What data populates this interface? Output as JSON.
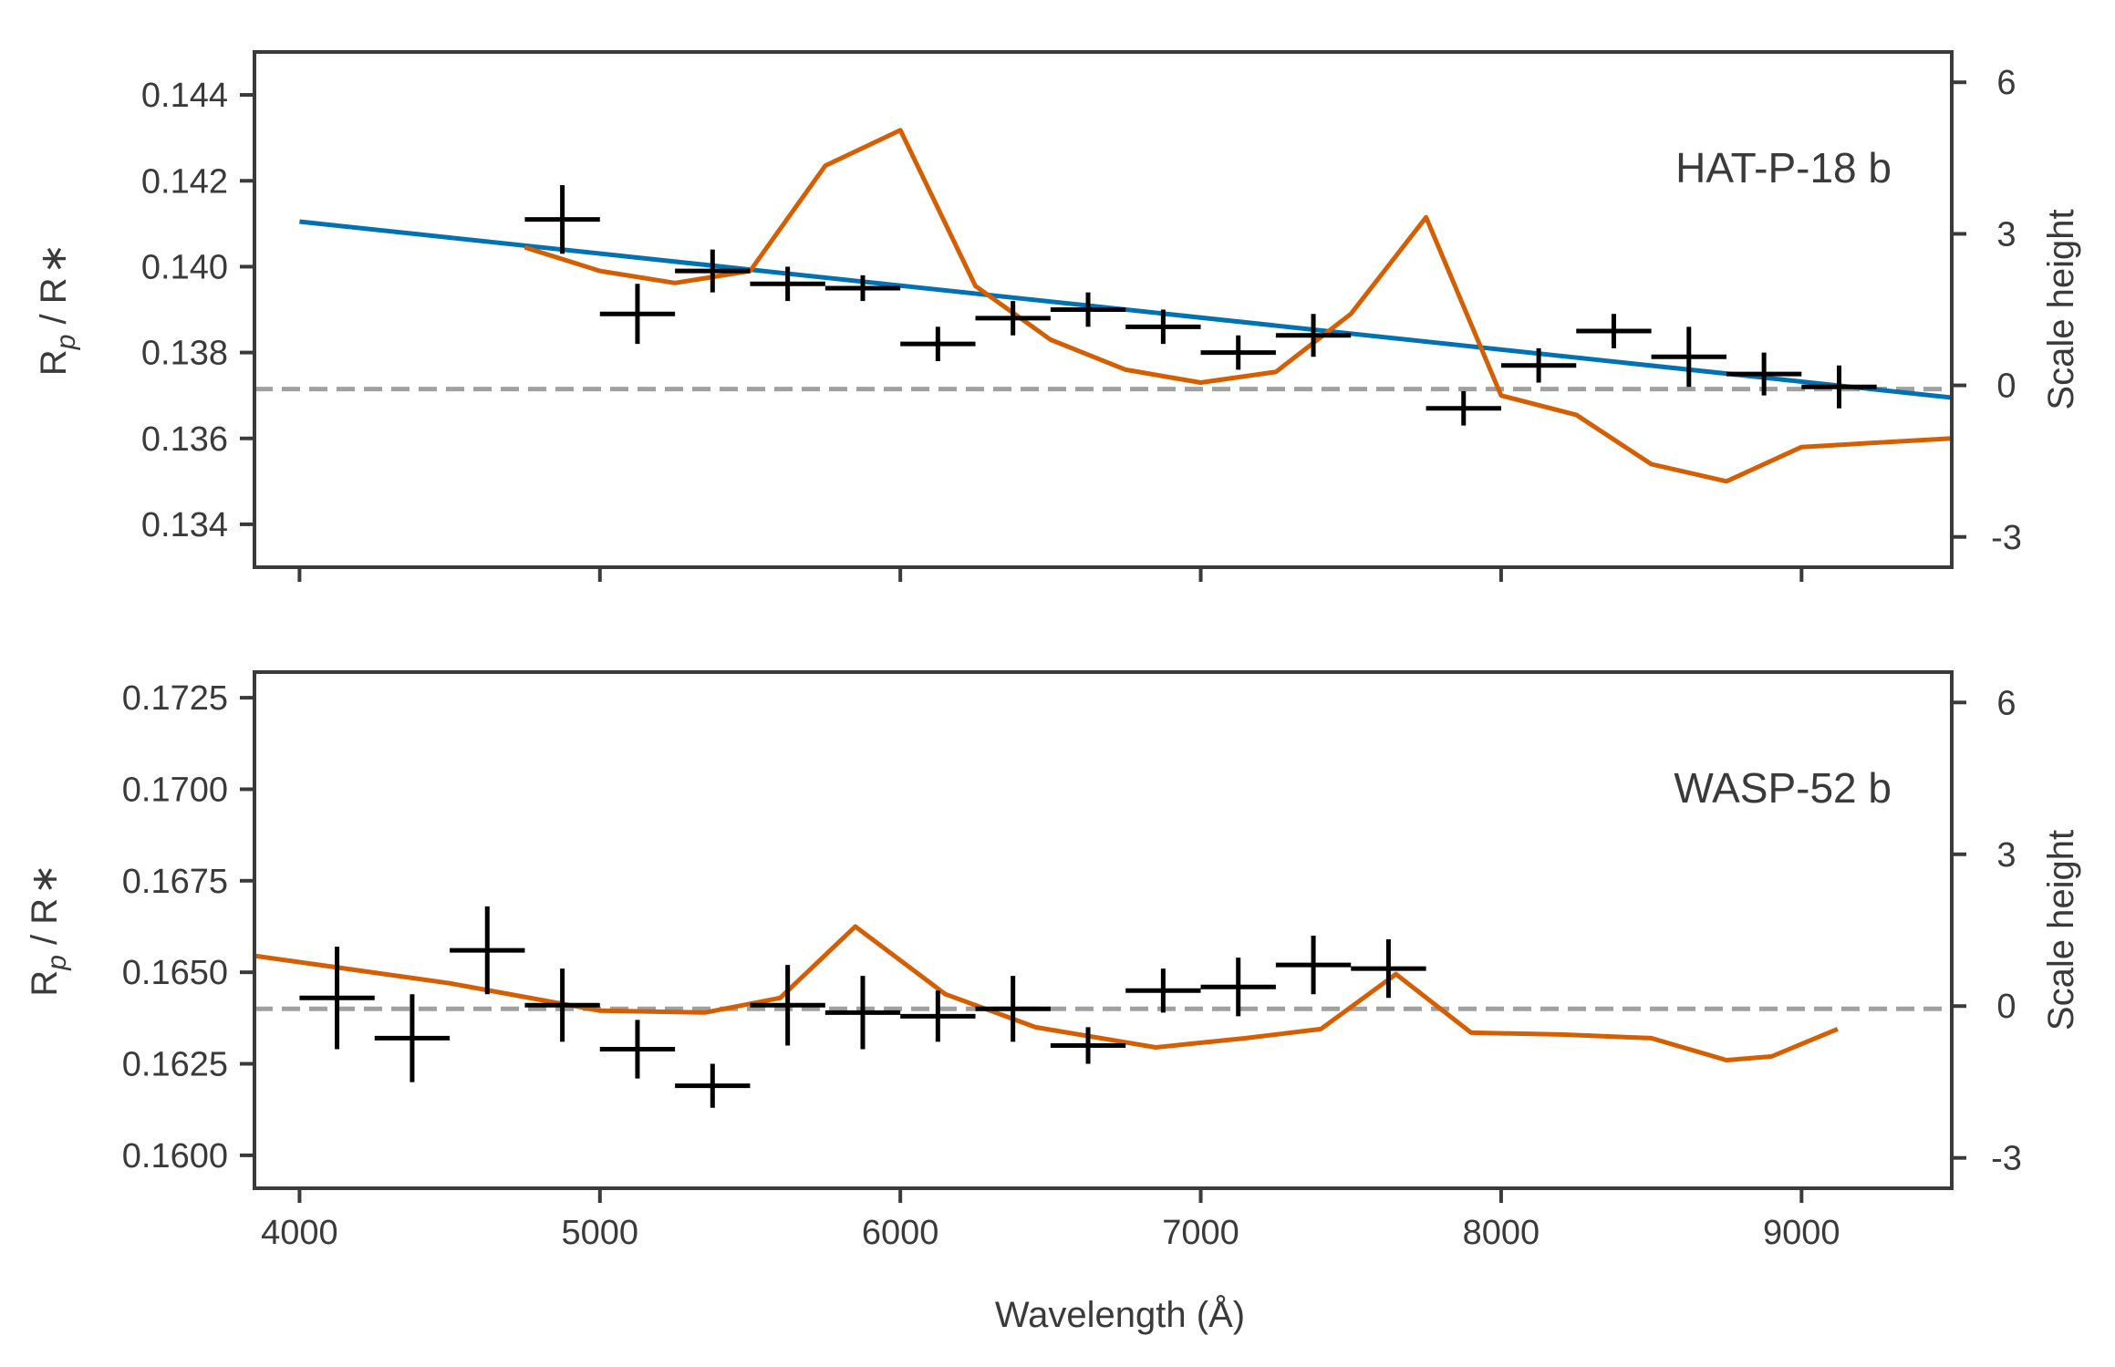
{
  "figure": {
    "xlabel": "Wavelength (Å)",
    "xticks": [
      4000,
      5000,
      6000,
      7000,
      8000,
      9000
    ],
    "xlim": [
      3850,
      9500
    ],
    "colors": {
      "model": "#d55e00",
      "fit": "#0072b2",
      "data": "#000000",
      "reference": "#a0a0a0",
      "axes": "#3a3a3a"
    }
  },
  "chart_data": [
    {
      "type": "line",
      "title": "HAT-P-18 b",
      "ylabel_main": "R",
      "ylabel_sub": "p",
      "ylabel_rest": " / R",
      "ylabel_star": "∗",
      "ylabel_right": "Scale height",
      "ylim": [
        0.133,
        0.145
      ],
      "yticks": [
        "0.134",
        "0.136",
        "0.138",
        "0.140",
        "0.142",
        "0.144"
      ],
      "ytick_values": [
        0.134,
        0.136,
        0.138,
        0.14,
        0.142,
        0.144
      ],
      "y2lim": [
        -3.6,
        6.6
      ],
      "y2ticks": [
        "-3",
        "0",
        "3",
        "6"
      ],
      "y2tick_values": [
        -3,
        0,
        3,
        6
      ],
      "reference_level": 0.13715,
      "series": [
        {
          "kind": "errorbar",
          "x": [
            4875,
            5125,
            5375,
            5625,
            5875,
            6125,
            6375,
            6625,
            6875,
            7125,
            7375,
            7875,
            8125,
            8375,
            8625,
            8875,
            9125
          ],
          "y": [
            0.1411,
            0.1389,
            0.1399,
            0.1396,
            0.1395,
            0.1382,
            0.1388,
            0.139,
            0.1386,
            0.138,
            0.1384,
            0.1367,
            0.1377,
            0.1385,
            0.1379,
            0.1375,
            0.1372
          ],
          "xerr": [
            125,
            125,
            125,
            125,
            125,
            125,
            125,
            125,
            125,
            125,
            125,
            125,
            125,
            125,
            125,
            125,
            125
          ],
          "yerr": [
            0.0008,
            0.0007,
            0.0005,
            0.0004,
            0.0003,
            0.0004,
            0.0004,
            0.0004,
            0.0004,
            0.0004,
            0.0005,
            0.0004,
            0.0004,
            0.0004,
            0.0007,
            0.0005,
            0.0005
          ]
        },
        {
          "kind": "line",
          "color_key": "fit",
          "x": [
            4000,
            9500
          ],
          "y": [
            0.14105,
            0.13695
          ]
        },
        {
          "kind": "line",
          "color_key": "model",
          "x": [
            4750,
            5000,
            5250,
            5500,
            5750,
            6000,
            6250,
            6500,
            6750,
            7000,
            7250,
            7500,
            7750,
            8000,
            8250,
            8500,
            8750,
            9000,
            9500
          ],
          "y": [
            0.14045,
            0.1399,
            0.13962,
            0.1399,
            0.14235,
            0.14318,
            0.13955,
            0.1383,
            0.1376,
            0.1373,
            0.13755,
            0.1389,
            0.14115,
            0.137,
            0.13655,
            0.1354,
            0.135,
            0.1358,
            0.136
          ]
        }
      ]
    },
    {
      "type": "line",
      "title": "WASP-52 b",
      "ylabel_main": "R",
      "ylabel_sub": "p",
      "ylabel_rest": " / R",
      "ylabel_star": "∗",
      "ylabel_right": "Scale height",
      "ylim": [
        0.1591,
        0.1732
      ],
      "yticks": [
        "0.1600",
        "0.1625",
        "0.1650",
        "0.1675",
        "0.1700",
        "0.1725"
      ],
      "ytick_values": [
        0.16,
        0.1625,
        0.165,
        0.1675,
        0.17,
        0.1725
      ],
      "y2lim": [
        -3.6,
        6.6
      ],
      "y2ticks": [
        "-3",
        "0",
        "3",
        "6"
      ],
      "y2tick_values": [
        -3,
        0,
        3,
        6
      ],
      "reference_level": 0.164,
      "series": [
        {
          "kind": "errorbar",
          "x": [
            4125,
            4375,
            4625,
            4875,
            5125,
            5375,
            5625,
            5875,
            6125,
            6375,
            6625,
            6875,
            7125,
            7375,
            7625
          ],
          "y": [
            0.1643,
            0.1632,
            0.1656,
            0.1641,
            0.1629,
            0.1619,
            0.1641,
            0.1639,
            0.1638,
            0.164,
            0.163,
            0.1645,
            0.1646,
            0.1652,
            0.1651
          ],
          "xerr": [
            125,
            125,
            125,
            125,
            125,
            125,
            125,
            125,
            125,
            125,
            125,
            125,
            125,
            125,
            125
          ],
          "yerr": [
            0.0014,
            0.0012,
            0.0012,
            0.001,
            0.0008,
            0.0006,
            0.0011,
            0.001,
            0.0007,
            0.0009,
            0.0005,
            0.0006,
            0.0008,
            0.0008,
            0.0008
          ]
        },
        {
          "kind": "line",
          "color_key": "model",
          "x": [
            3850,
            4500,
            5000,
            5350,
            5600,
            5850,
            6150,
            6450,
            6850,
            7150,
            7400,
            7650,
            7900,
            8200,
            8500,
            8750,
            8900,
            9120
          ],
          "y": [
            0.16545,
            0.1647,
            0.16395,
            0.1639,
            0.1643,
            0.16625,
            0.1644,
            0.1635,
            0.16295,
            0.1632,
            0.16345,
            0.16495,
            0.16335,
            0.1633,
            0.1632,
            0.1626,
            0.1627,
            0.16345
          ]
        }
      ]
    }
  ]
}
